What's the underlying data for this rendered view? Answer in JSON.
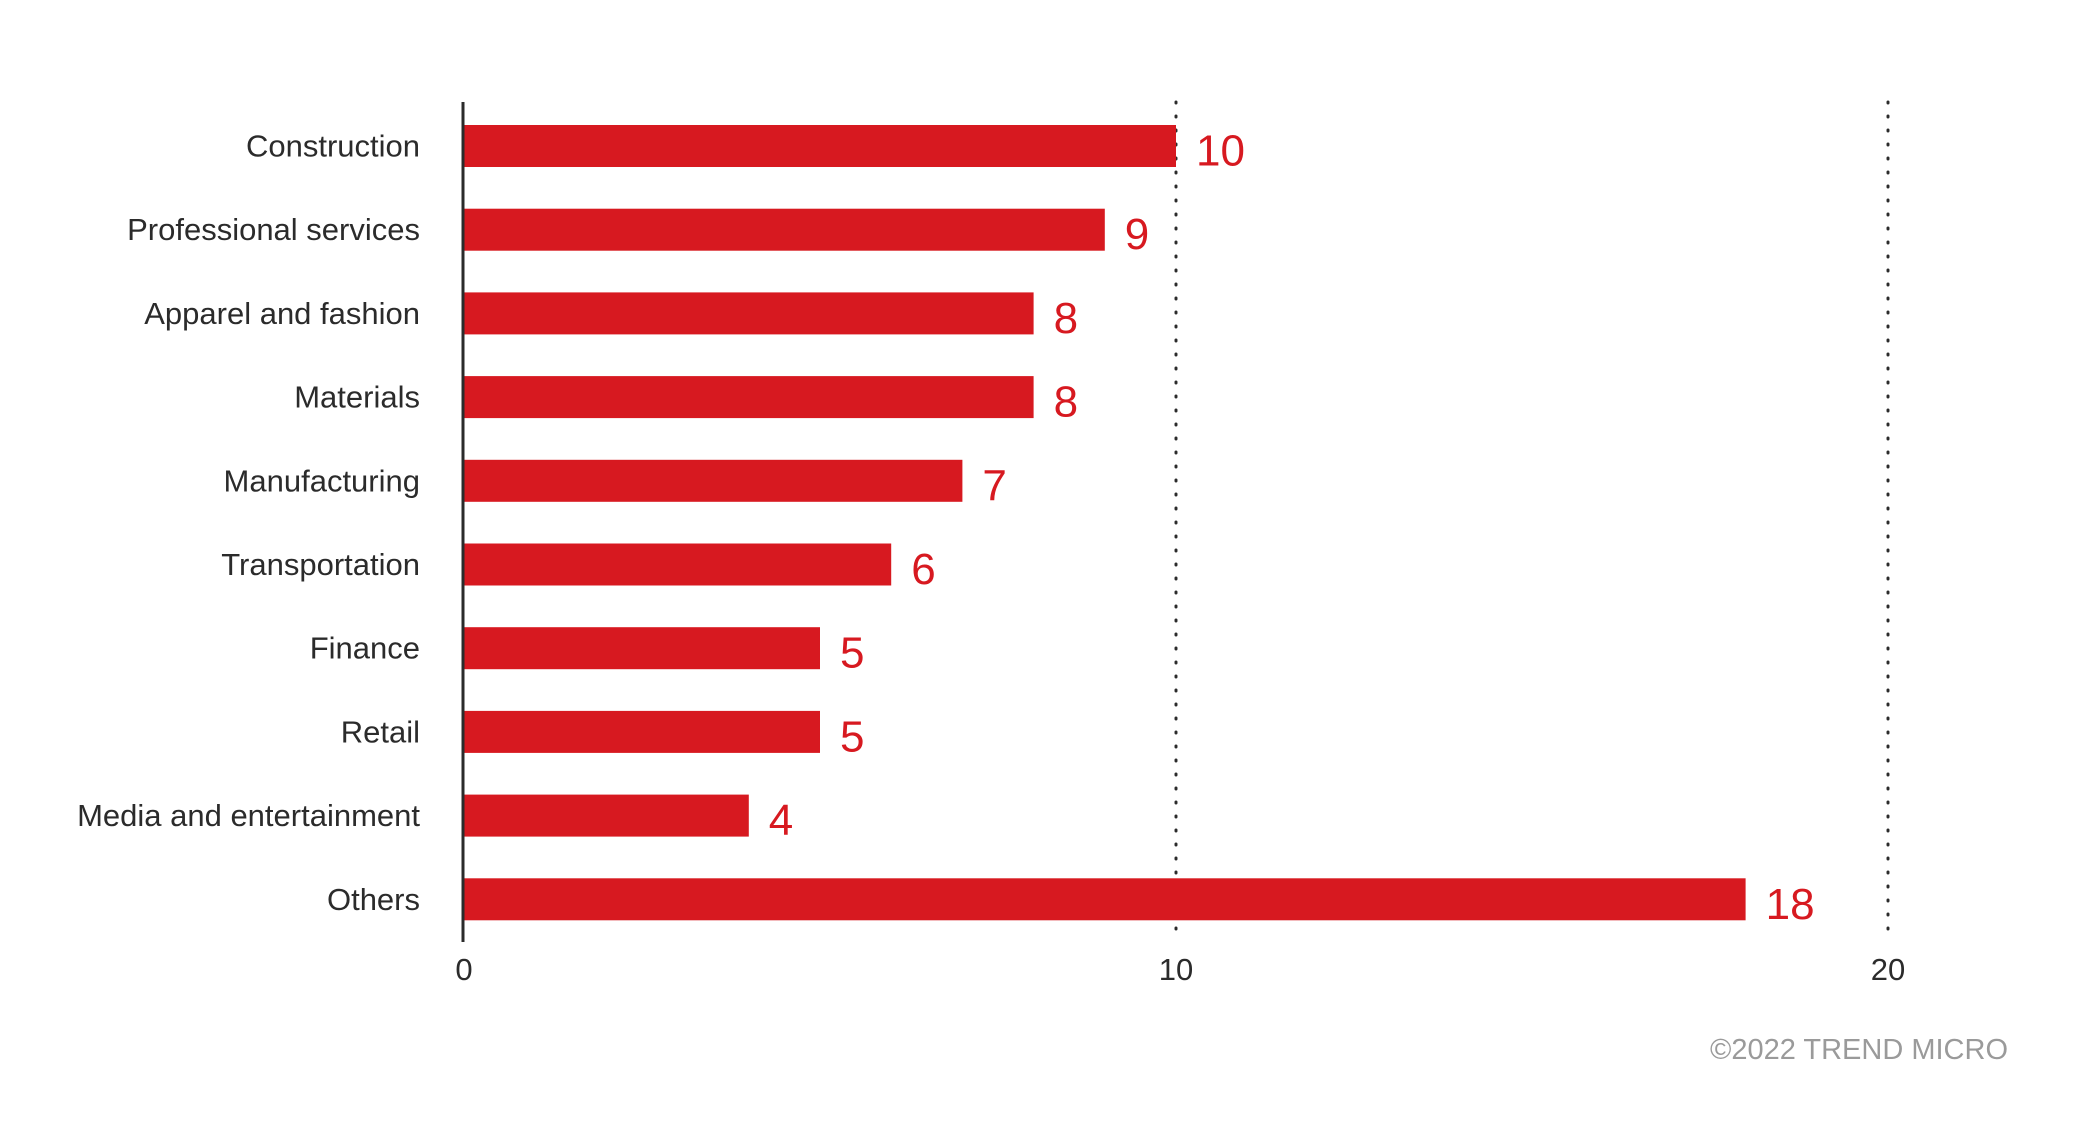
{
  "chart_data": {
    "type": "bar",
    "orientation": "horizontal",
    "categories": [
      "Construction",
      "Professional services",
      "Apparel and fashion",
      "Materials",
      "Manufacturing",
      "Transportation",
      "Finance",
      "Retail",
      "Media and entertainment",
      "Others"
    ],
    "values": [
      10,
      9,
      8,
      8,
      7,
      6,
      5,
      5,
      4,
      18
    ],
    "data_labels": [
      "10",
      "9",
      "8",
      "8",
      "7",
      "6",
      "5",
      "5",
      "4",
      "18"
    ],
    "xlim": [
      0,
      20
    ],
    "x_ticks": [
      0,
      10,
      20
    ],
    "x_tick_labels": [
      "0",
      "10",
      "20"
    ],
    "grid": "dotted vertical lines at 10 and 20",
    "title": "",
    "xlabel": "",
    "ylabel": "",
    "bar_color": "#d71920",
    "label_color": "#d71920"
  },
  "credit": "©2022 TREND MICRO"
}
